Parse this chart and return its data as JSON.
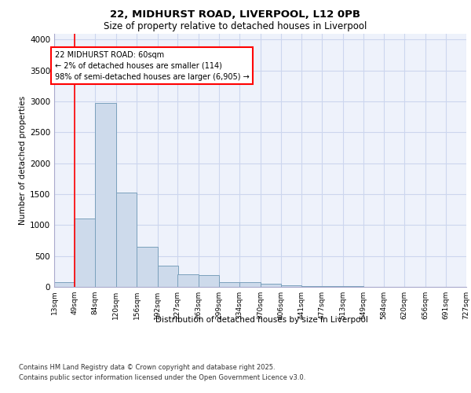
{
  "title1": "22, MIDHURST ROAD, LIVERPOOL, L12 0PB",
  "title2": "Size of property relative to detached houses in Liverpool",
  "xlabel": "Distribution of detached houses by size in Liverpool",
  "ylabel": "Number of detached properties",
  "footer1": "Contains HM Land Registry data © Crown copyright and database right 2025.",
  "footer2": "Contains public sector information licensed under the Open Government Licence v3.0.",
  "annotation_line1": "22 MIDHURST ROAD: 60sqm",
  "annotation_line2": "← 2% of detached houses are smaller (114)",
  "annotation_line3": "98% of semi-detached houses are larger (6,905) →",
  "bar_color": "#cddaeb",
  "bar_edge_color": "#7aa0bc",
  "redline_x": 49,
  "bins": [
    13,
    49,
    84,
    120,
    156,
    192,
    227,
    263,
    299,
    334,
    370,
    406,
    441,
    477,
    513,
    549,
    584,
    620,
    656,
    691,
    727
  ],
  "values": [
    75,
    1100,
    2970,
    1530,
    650,
    340,
    200,
    195,
    80,
    80,
    55,
    20,
    15,
    10,
    8,
    5,
    5,
    3,
    2,
    2
  ],
  "ylim": [
    0,
    4100
  ],
  "yticks": [
    0,
    500,
    1000,
    1500,
    2000,
    2500,
    3000,
    3500,
    4000
  ],
  "bg_color": "#eef2fb",
  "grid_color": "#ccd6ee"
}
